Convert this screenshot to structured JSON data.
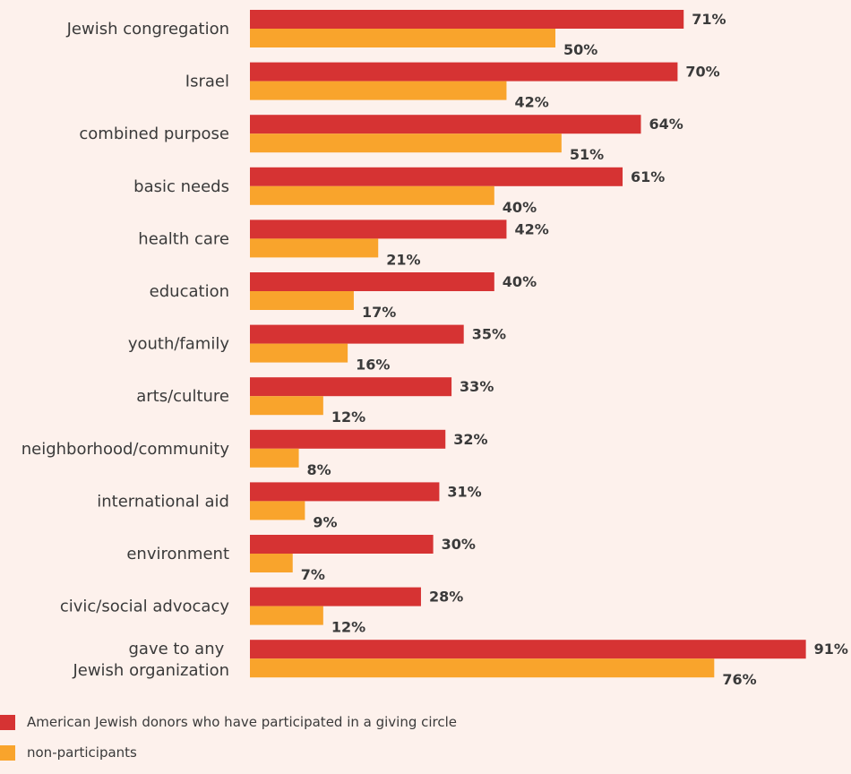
{
  "chart_data": {
    "type": "bar",
    "orientation": "horizontal",
    "categories": [
      "Jewish congregation",
      "Israel",
      "combined purpose",
      "basic needs",
      "health care",
      "education",
      "youth/family",
      "arts/culture",
      "neighborhood/community",
      "international aid",
      "environment",
      "civic/social advocacy",
      "gave to any Jewish organization"
    ],
    "series": [
      {
        "name": "American Jewish donors who have participated in a giving circle",
        "color": "#d63333",
        "values": [
          71,
          70,
          64,
          61,
          42,
          40,
          35,
          33,
          32,
          31,
          30,
          28,
          91
        ]
      },
      {
        "name": "non-participants",
        "color": "#f9a42c",
        "values": [
          50,
          42,
          51,
          40,
          21,
          17,
          16,
          12,
          8,
          9,
          7,
          12,
          76
        ]
      }
    ],
    "value_suffix": "%",
    "xlim": [
      0,
      100
    ],
    "grid": false,
    "legend_position": "bottom-left"
  },
  "legend": {
    "items": [
      {
        "label": "American Jewish donors who have participated in a giving circle",
        "color": "#d63333"
      },
      {
        "label": "non-participants",
        "color": "#f9a42c"
      }
    ]
  }
}
